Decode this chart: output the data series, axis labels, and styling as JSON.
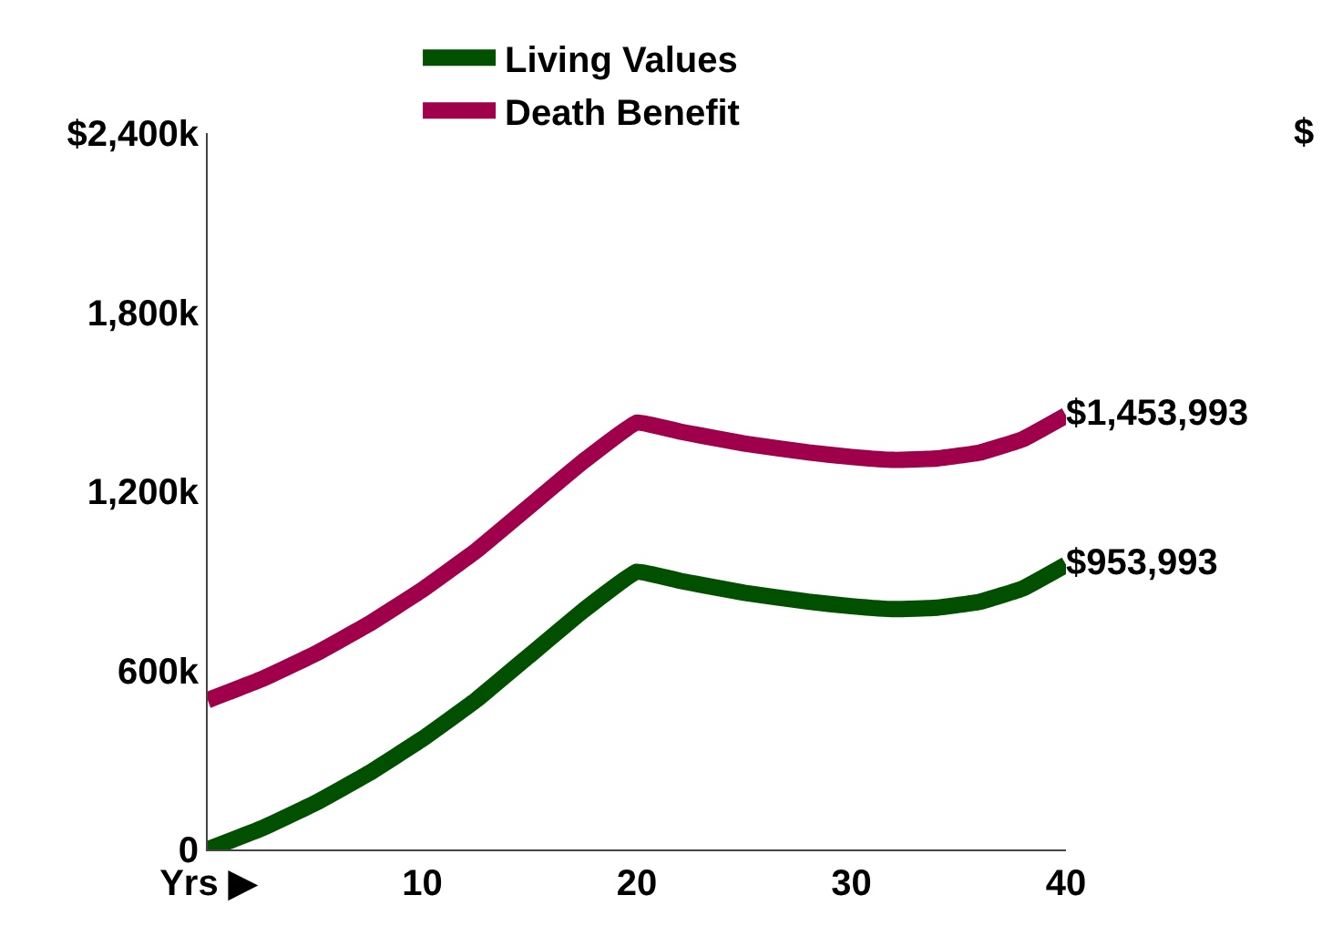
{
  "chart_data": {
    "type": "line",
    "x": [
      0,
      2.5,
      5,
      7.5,
      10,
      12.5,
      15,
      17.5,
      20,
      22,
      25,
      28,
      30,
      32,
      34,
      36,
      38,
      40
    ],
    "series": [
      {
        "name": "Living Values",
        "color": "#005000",
        "values": [
          0,
          70000,
          155000,
          255000,
          370000,
          500000,
          650000,
          800000,
          930000,
          900000,
          860000,
          830000,
          815000,
          805000,
          810000,
          830000,
          875000,
          953993
        ],
        "value_labels": [
          null,
          null,
          null,
          null,
          null,
          null,
          null,
          null,
          null,
          null,
          null,
          null,
          null,
          null,
          null,
          null,
          null,
          "$953,993"
        ]
      },
      {
        "name": "Death Benefit",
        "color": "#a0004b",
        "values": [
          500000,
          570000,
          655000,
          755000,
          870000,
          1000000,
          1150000,
          1300000,
          1430000,
          1400000,
          1360000,
          1330000,
          1315000,
          1305000,
          1310000,
          1330000,
          1375000,
          1453993
        ],
        "value_labels": [
          null,
          null,
          null,
          null,
          null,
          null,
          null,
          null,
          null,
          null,
          null,
          null,
          null,
          null,
          null,
          null,
          null,
          "$1,453,993"
        ]
      }
    ],
    "xlim": [
      0,
      40
    ],
    "xticks": [
      {
        "value": 0,
        "label": "Yrs ▶"
      },
      10,
      20,
      30,
      40
    ],
    "ylim": [
      0,
      2400000
    ],
    "yticks": [
      0,
      {
        "value": 600000,
        "label": "600k"
      },
      {
        "value": 1200000,
        "label": "1,200k"
      },
      {
        "value": 1800000,
        "label": "1,800k"
      },
      {
        "value": 2400000,
        "label": "$2,400k"
      }
    ],
    "annotations": [
      "$"
    ],
    "legend": "top",
    "marker": "none",
    "line_style": "solid"
  }
}
